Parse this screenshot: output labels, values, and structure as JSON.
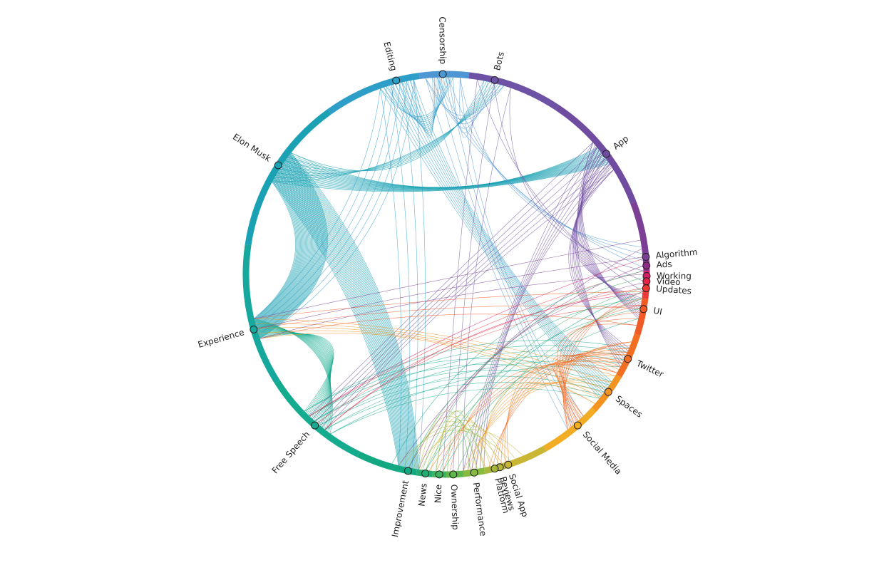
{
  "diagram": {
    "kind": "chord-diagram",
    "topics": [
      {
        "label": "Censorship",
        "color": "#4e97d3"
      },
      {
        "label": "Bots",
        "color": "#6d52a5"
      },
      {
        "label": "App",
        "color": "#6f4ca0"
      },
      {
        "label": "Algorithm",
        "color": "#7b3f96"
      },
      {
        "label": "Ads",
        "color": "#8f2f87"
      },
      {
        "label": "Working",
        "color": "#d81f6a"
      },
      {
        "label": "Video",
        "color": "#e52647"
      },
      {
        "label": "Updates",
        "color": "#ec3a36"
      },
      {
        "label": "UI",
        "color": "#f05a27"
      },
      {
        "label": "Twitter",
        "color": "#f26e22"
      },
      {
        "label": "Spaces",
        "color": "#f39322"
      },
      {
        "label": "Social Media",
        "color": "#f2ad24"
      },
      {
        "label": "Social App",
        "color": "#c9b634"
      },
      {
        "label": "Reviews",
        "color": "#b7b53a"
      },
      {
        "label": "Platform",
        "color": "#a6b73c"
      },
      {
        "label": "Performance",
        "color": "#86bb40"
      },
      {
        "label": "Ownership",
        "color": "#5fb64a"
      },
      {
        "label": "Nice",
        "color": "#3fb260"
      },
      {
        "label": "News",
        "color": "#22ad73"
      },
      {
        "label": "Improvement",
        "color": "#12a982"
      },
      {
        "label": "Free Speech",
        "color": "#14ab8e"
      },
      {
        "label": "Experience",
        "color": "#16a79d"
      },
      {
        "label": "Elon Musk",
        "color": "#1aa1b3"
      },
      {
        "label": "Editing",
        "color": "#2c9ec8"
      }
    ],
    "links": [
      {
        "from": "Elon Musk",
        "to": "Experience",
        "count": 40
      },
      {
        "from": "Elon Musk",
        "to": "Improvement",
        "count": 30
      },
      {
        "from": "Elon Musk",
        "to": "App",
        "count": 20
      },
      {
        "from": "Elon Musk",
        "to": "Bots",
        "count": 8
      },
      {
        "from": "Free Speech",
        "to": "Experience",
        "count": 22
      },
      {
        "from": "Free Speech",
        "to": "Spaces",
        "count": 6
      },
      {
        "from": "Free Speech",
        "to": "Twitter",
        "count": 6
      },
      {
        "from": "Editing",
        "to": "Censorship",
        "count": 12
      },
      {
        "from": "Editing",
        "to": "Spaces",
        "count": 10
      },
      {
        "from": "Editing",
        "to": "Experience",
        "count": 6
      },
      {
        "from": "Editing",
        "to": "Improvement",
        "count": 4
      },
      {
        "from": "Censorship",
        "to": "Bots",
        "count": 6
      },
      {
        "from": "Censorship",
        "to": "Social Media",
        "count": 4
      },
      {
        "from": "Censorship",
        "to": "Algorithm",
        "count": 4
      },
      {
        "from": "App",
        "to": "UI",
        "count": 12
      },
      {
        "from": "App",
        "to": "Twitter",
        "count": 8
      },
      {
        "from": "App",
        "to": "Performance",
        "count": 6
      },
      {
        "from": "App",
        "to": "Free Speech",
        "count": 6
      },
      {
        "from": "Bots",
        "to": "Ownership",
        "count": 3
      },
      {
        "from": "Bots",
        "to": "Video",
        "count": 3
      },
      {
        "from": "Twitter",
        "to": "Social Media",
        "count": 10
      },
      {
        "from": "Twitter",
        "to": "Reviews",
        "count": 6
      },
      {
        "from": "Twitter",
        "to": "Nice",
        "count": 4
      },
      {
        "from": "Spaces",
        "to": "Performance",
        "count": 6
      },
      {
        "from": "Spaces",
        "to": "Experience",
        "count": 5
      },
      {
        "from": "UI",
        "to": "Experience",
        "count": 3
      },
      {
        "from": "UI",
        "to": "Social Media",
        "count": 6
      },
      {
        "from": "Algorithm",
        "to": "Experience",
        "count": 3
      },
      {
        "from": "Ads",
        "to": "Improvement",
        "count": 3
      },
      {
        "from": "Working",
        "to": "Free Speech",
        "count": 2
      },
      {
        "from": "Updates",
        "to": "Free Speech",
        "count": 3
      },
      {
        "from": "Social App",
        "to": "News",
        "count": 5
      },
      {
        "from": "Platform",
        "to": "Improvement",
        "count": 5
      },
      {
        "from": "Ownership",
        "to": "Performance",
        "count": 4
      },
      {
        "from": "Nice",
        "to": "Updates",
        "count": 3
      },
      {
        "from": "News",
        "to": "UI",
        "count": 3
      },
      {
        "from": "Improvement",
        "to": "Video",
        "count": 2
      }
    ]
  }
}
